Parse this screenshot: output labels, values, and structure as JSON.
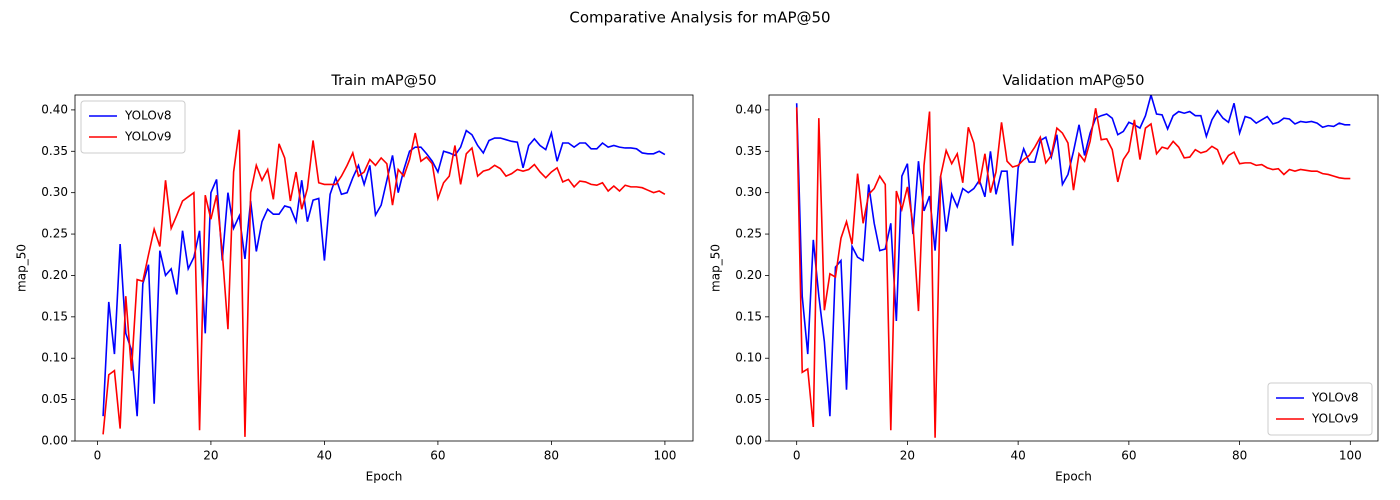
{
  "title": "Comparative Analysis for mAP@50",
  "chart_data": [
    {
      "type": "line",
      "title": "Train mAP@50",
      "xlabel": "Epoch",
      "ylabel": "map_50",
      "legend": "upper left",
      "xlim": [
        -3.95,
        104.95
      ],
      "ylim": [
        0,
        0.418
      ],
      "xticks": [
        0,
        20,
        40,
        60,
        80,
        100
      ],
      "yticks": [
        {
          "value": 0,
          "label": "0.00"
        },
        {
          "value": 0.05,
          "label": "0.05"
        },
        {
          "value": 0.1,
          "label": "0.10"
        },
        {
          "value": 0.15,
          "label": "0.15"
        },
        {
          "value": 0.2,
          "label": "0.20"
        },
        {
          "value": 0.25,
          "label": "0.25"
        },
        {
          "value": 0.3,
          "label": "0.30"
        },
        {
          "value": 0.35,
          "label": "0.35"
        },
        {
          "value": 0.4,
          "label": "0.40"
        }
      ],
      "x": [
        1,
        2,
        3,
        4,
        5,
        6,
        7,
        8,
        9,
        10,
        11,
        12,
        13,
        14,
        15,
        16,
        17,
        18,
        19,
        20,
        21,
        22,
        23,
        24,
        25,
        26,
        27,
        28,
        29,
        30,
        31,
        32,
        33,
        34,
        35,
        36,
        37,
        38,
        39,
        40,
        41,
        42,
        43,
        44,
        45,
        46,
        47,
        48,
        49,
        50,
        51,
        52,
        53,
        54,
        55,
        56,
        57,
        58,
        59,
        60,
        61,
        62,
        63,
        64,
        65,
        66,
        67,
        68,
        69,
        70,
        71,
        72,
        73,
        74,
        75,
        76,
        77,
        78,
        79,
        80,
        81,
        82,
        83,
        84,
        85,
        86,
        87,
        88,
        89,
        90,
        91,
        92,
        93,
        94,
        95,
        96,
        97,
        98,
        99,
        100
      ],
      "series": [
        {
          "name": "YOLOv8",
          "color": "#0000ff",
          "values": [
            0.03,
            0.168,
            0.105,
            0.238,
            0.13,
            0.11,
            0.03,
            0.19,
            0.213,
            0.045,
            0.23,
            0.2,
            0.208,
            0.177,
            0.254,
            0.208,
            0.222,
            0.254,
            0.13,
            0.3,
            0.316,
            0.218,
            0.3,
            0.257,
            0.272,
            0.22,
            0.29,
            0.229,
            0.265,
            0.28,
            0.274,
            0.274,
            0.284,
            0.282,
            0.265,
            0.315,
            0.265,
            0.291,
            0.293,
            0.218,
            0.298,
            0.318,
            0.298,
            0.3,
            0.318,
            0.333,
            0.31,
            0.333,
            0.273,
            0.285,
            0.315,
            0.345,
            0.3,
            0.328,
            0.35,
            0.355,
            0.355,
            0.347,
            0.338,
            0.325,
            0.35,
            0.348,
            0.345,
            0.355,
            0.375,
            0.37,
            0.357,
            0.348,
            0.363,
            0.366,
            0.366,
            0.364,
            0.362,
            0.361,
            0.33,
            0.357,
            0.365,
            0.357,
            0.352,
            0.372,
            0.338,
            0.36,
            0.36,
            0.355,
            0.36,
            0.36,
            0.353,
            0.353,
            0.36,
            0.355,
            0.357,
            0.355,
            0.354,
            0.354,
            0.353,
            0.348,
            0.347,
            0.347,
            0.35,
            0.346
          ]
        },
        {
          "name": "YOLOv9",
          "color": "#ff0000",
          "values": [
            0.008,
            0.08,
            0.085,
            0.015,
            0.175,
            0.085,
            0.195,
            0.193,
            0.225,
            0.256,
            0.235,
            0.315,
            0.257,
            0.273,
            0.29,
            0.295,
            0.3,
            0.013,
            0.297,
            0.268,
            0.297,
            0.228,
            0.135,
            0.325,
            0.376,
            0.005,
            0.3,
            0.333,
            0.315,
            0.328,
            0.292,
            0.359,
            0.342,
            0.29,
            0.325,
            0.28,
            0.305,
            0.363,
            0.312,
            0.31,
            0.31,
            0.31,
            0.32,
            0.333,
            0.348,
            0.32,
            0.325,
            0.34,
            0.333,
            0.342,
            0.335,
            0.285,
            0.328,
            0.32,
            0.34,
            0.372,
            0.338,
            0.343,
            0.335,
            0.293,
            0.312,
            0.32,
            0.357,
            0.31,
            0.347,
            0.354,
            0.32,
            0.326,
            0.328,
            0.333,
            0.329,
            0.32,
            0.323,
            0.328,
            0.326,
            0.328,
            0.334,
            0.325,
            0.318,
            0.325,
            0.33,
            0.313,
            0.316,
            0.307,
            0.314,
            0.313,
            0.31,
            0.309,
            0.312,
            0.302,
            0.308,
            0.302,
            0.309,
            0.307,
            0.307,
            0.306,
            0.303,
            0.3,
            0.302,
            0.298
          ]
        }
      ]
    },
    {
      "type": "line",
      "title": "Validation mAP@50",
      "xlabel": "Epoch",
      "ylabel": "map_50",
      "legend": "lower right",
      "xlim": [
        -5,
        105
      ],
      "ylim": [
        0,
        0.418
      ],
      "xticks": [
        0,
        20,
        40,
        60,
        80,
        100
      ],
      "yticks": [
        {
          "value": 0,
          "label": "0.00"
        },
        {
          "value": 0.05,
          "label": "0.05"
        },
        {
          "value": 0.1,
          "label": "0.10"
        },
        {
          "value": 0.15,
          "label": "0.15"
        },
        {
          "value": 0.2,
          "label": "0.20"
        },
        {
          "value": 0.25,
          "label": "0.25"
        },
        {
          "value": 0.3,
          "label": "0.30"
        },
        {
          "value": 0.35,
          "label": "0.35"
        },
        {
          "value": 0.4,
          "label": "0.40"
        }
      ],
      "x": [
        0,
        1,
        2,
        3,
        4,
        5,
        6,
        7,
        8,
        9,
        10,
        11,
        12,
        13,
        14,
        15,
        16,
        17,
        18,
        19,
        20,
        21,
        22,
        23,
        24,
        25,
        26,
        27,
        28,
        29,
        30,
        31,
        32,
        33,
        34,
        35,
        36,
        37,
        38,
        39,
        40,
        41,
        42,
        43,
        44,
        45,
        46,
        47,
        48,
        49,
        50,
        51,
        52,
        53,
        54,
        55,
        56,
        57,
        58,
        59,
        60,
        61,
        62,
        63,
        64,
        65,
        66,
        67,
        68,
        69,
        70,
        71,
        72,
        73,
        74,
        75,
        76,
        77,
        78,
        79,
        80,
        81,
        82,
        83,
        84,
        85,
        86,
        87,
        88,
        89,
        90,
        91,
        92,
        93,
        94,
        95,
        96,
        97,
        98,
        99,
        100
      ],
      "series": [
        {
          "name": "YOLOv8",
          "color": "#0000ff",
          "values": [
            0.408,
            0.175,
            0.105,
            0.243,
            0.175,
            0.12,
            0.03,
            0.21,
            0.218,
            0.062,
            0.235,
            0.222,
            0.218,
            0.31,
            0.263,
            0.23,
            0.232,
            0.263,
            0.145,
            0.32,
            0.335,
            0.25,
            0.338,
            0.278,
            0.296,
            0.23,
            0.32,
            0.253,
            0.298,
            0.283,
            0.305,
            0.3,
            0.305,
            0.315,
            0.295,
            0.35,
            0.298,
            0.326,
            0.326,
            0.236,
            0.33,
            0.353,
            0.337,
            0.337,
            0.363,
            0.367,
            0.343,
            0.37,
            0.31,
            0.322,
            0.35,
            0.382,
            0.345,
            0.372,
            0.39,
            0.393,
            0.395,
            0.39,
            0.37,
            0.374,
            0.385,
            0.382,
            0.378,
            0.393,
            0.418,
            0.395,
            0.394,
            0.377,
            0.393,
            0.398,
            0.396,
            0.398,
            0.393,
            0.393,
            0.368,
            0.388,
            0.399,
            0.39,
            0.385,
            0.408,
            0.372,
            0.392,
            0.39,
            0.384,
            0.388,
            0.392,
            0.383,
            0.385,
            0.39,
            0.389,
            0.383,
            0.386,
            0.385,
            0.386,
            0.384,
            0.379,
            0.381,
            0.38,
            0.384,
            0.382,
            0.382
          ]
        },
        {
          "name": "YOLOv9",
          "color": "#ff0000",
          "values": [
            0.403,
            0.083,
            0.087,
            0.017,
            0.39,
            0.158,
            0.202,
            0.198,
            0.245,
            0.265,
            0.238,
            0.323,
            0.263,
            0.298,
            0.305,
            0.32,
            0.31,
            0.013,
            0.302,
            0.28,
            0.307,
            0.262,
            0.157,
            0.333,
            0.398,
            0.004,
            0.32,
            0.351,
            0.335,
            0.347,
            0.312,
            0.379,
            0.36,
            0.31,
            0.347,
            0.3,
            0.325,
            0.385,
            0.338,
            0.331,
            0.333,
            0.34,
            0.345,
            0.355,
            0.367,
            0.336,
            0.345,
            0.378,
            0.372,
            0.36,
            0.303,
            0.347,
            0.338,
            0.362,
            0.402,
            0.364,
            0.365,
            0.352,
            0.313,
            0.34,
            0.35,
            0.388,
            0.34,
            0.378,
            0.383,
            0.347,
            0.355,
            0.353,
            0.362,
            0.355,
            0.342,
            0.343,
            0.352,
            0.348,
            0.35,
            0.356,
            0.352,
            0.335,
            0.345,
            0.349,
            0.335,
            0.336,
            0.336,
            0.333,
            0.334,
            0.33,
            0.328,
            0.329,
            0.322,
            0.328,
            0.326,
            0.328,
            0.327,
            0.326,
            0.326,
            0.323,
            0.322,
            0.32,
            0.318,
            0.317,
            0.317
          ]
        }
      ]
    }
  ]
}
